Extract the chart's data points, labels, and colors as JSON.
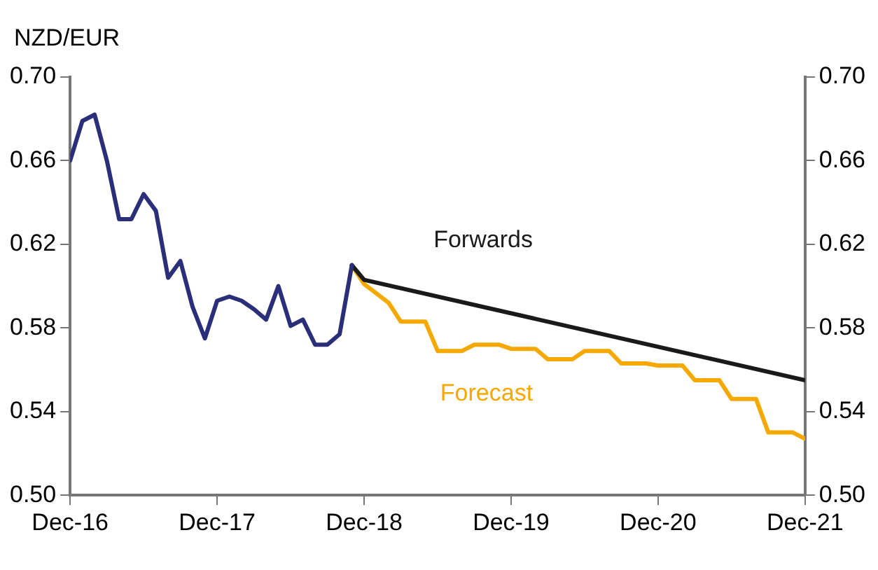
{
  "chart_data": {
    "type": "line",
    "ylabel": "NZD/EUR",
    "xlim": [
      "2016-12",
      "2021-12"
    ],
    "xticks": [
      {
        "value": "2016-12",
        "label": "Dec-16"
      },
      {
        "value": "2017-12",
        "label": "Dec-17"
      },
      {
        "value": "2018-12",
        "label": "Dec-18"
      },
      {
        "value": "2019-12",
        "label": "Dec-19"
      },
      {
        "value": "2020-12",
        "label": "Dec-20"
      },
      {
        "value": "2021-12",
        "label": "Dec-21"
      }
    ],
    "ylim": [
      0.5,
      0.7
    ],
    "yticks": [
      {
        "value": 0.5,
        "label": "0.50"
      },
      {
        "value": 0.54,
        "label": "0.54"
      },
      {
        "value": 0.58,
        "label": "0.58"
      },
      {
        "value": 0.62,
        "label": "0.62"
      },
      {
        "value": 0.66,
        "label": "0.66"
      },
      {
        "value": 0.7,
        "label": "0.70"
      }
    ],
    "y2lim": [
      0.5,
      0.7
    ],
    "y2ticks": [
      {
        "value": 0.5,
        "label": "0.50"
      },
      {
        "value": 0.54,
        "label": "0.54"
      },
      {
        "value": 0.58,
        "label": "0.58"
      },
      {
        "value": 0.62,
        "label": "0.62"
      },
      {
        "value": 0.66,
        "label": "0.66"
      },
      {
        "value": 0.7,
        "label": "0.70"
      }
    ],
    "grid": false,
    "legend": false,
    "marker": "none",
    "line_style": "solid",
    "series": [
      {
        "color": "#2b2f7a",
        "x": [
          "2016-12",
          "2017-01",
          "2017-02",
          "2017-03",
          "2017-04",
          "2017-05",
          "2017-06",
          "2017-07",
          "2017-08",
          "2017-09",
          "2017-10",
          "2017-11",
          "2017-12",
          "2018-01",
          "2018-02",
          "2018-03",
          "2018-04",
          "2018-05",
          "2018-06",
          "2018-07",
          "2018-08",
          "2018-09",
          "2018-10",
          "2018-11"
        ],
        "values": [
          0.66,
          0.679,
          0.682,
          0.66,
          0.632,
          0.632,
          0.644,
          0.636,
          0.604,
          0.612,
          0.59,
          0.575,
          0.593,
          0.595,
          0.593,
          0.589,
          0.584,
          0.6,
          0.581,
          0.584,
          0.572,
          0.572,
          0.577,
          0.61
        ]
      },
      {
        "name": "Forwards",
        "color": "#1a1a1a",
        "x": [
          "2018-11",
          "2018-12",
          "2021-12"
        ],
        "values": [
          0.61,
          0.603,
          0.555
        ]
      },
      {
        "name": "Forecast",
        "color": "#f5a800",
        "x": [
          "2018-11",
          "2018-12",
          "2019-02",
          "2019-03",
          "2019-05",
          "2019-06",
          "2019-08",
          "2019-09",
          "2019-11",
          "2019-12",
          "2020-02",
          "2020-03",
          "2020-05",
          "2020-06",
          "2020-08",
          "2020-09",
          "2020-11",
          "2020-12",
          "2021-02",
          "2021-03",
          "2021-05",
          "2021-06",
          "2021-08",
          "2021-09",
          "2021-11",
          "2021-12"
        ],
        "values": [
          0.61,
          0.601,
          0.592,
          0.583,
          0.583,
          0.569,
          0.569,
          0.572,
          0.572,
          0.57,
          0.57,
          0.565,
          0.565,
          0.569,
          0.569,
          0.563,
          0.563,
          0.562,
          0.562,
          0.555,
          0.555,
          0.546,
          0.546,
          0.53,
          0.53,
          0.527
        ]
      }
    ]
  }
}
